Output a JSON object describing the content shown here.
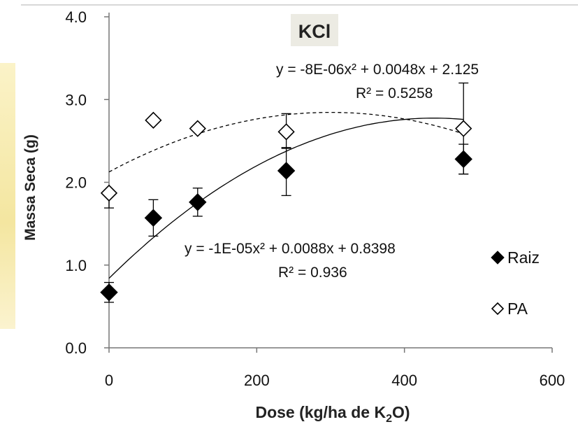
{
  "chart_data": {
    "type": "scatter",
    "title": "KCl",
    "xlabel_main": "Dose (kg/ha de K",
    "xlabel_sub": "2",
    "xlabel_end": "O)",
    "ylabel": "Massa Seca (g)",
    "xlim": [
      0,
      600
    ],
    "ylim": [
      0,
      4
    ],
    "x_ticks": [
      0,
      200,
      400,
      600
    ],
    "x_tick_labels": [
      "0",
      "200",
      "400",
      "600"
    ],
    "y_ticks": [
      0,
      1,
      2,
      3,
      4
    ],
    "y_tick_labels": [
      "0.0",
      "1.0",
      "2.0",
      "3.0",
      "4.0"
    ],
    "grid": false,
    "legend_position": "right",
    "series": [
      {
        "name": "Raiz",
        "marker": "filled-diamond",
        "color": "#000000",
        "x": [
          0,
          60,
          120,
          240,
          480
        ],
        "y": [
          0.67,
          1.57,
          1.76,
          2.14,
          2.28
        ],
        "err_low": [
          0.12,
          0.22,
          0.17,
          0.3,
          0.18
        ],
        "err_high": [
          0.12,
          0.22,
          0.17,
          0.28,
          0.18
        ],
        "trend": {
          "a": -1e-05,
          "b": 0.0088,
          "c": 0.8398,
          "style": "solid"
        },
        "equation": "y = -1E-05x² + 0.0088x + 0.8398",
        "r2": "R² = 0.936"
      },
      {
        "name": "PA",
        "marker": "open-diamond",
        "color": "#000000",
        "x": [
          0,
          60,
          120,
          240,
          480
        ],
        "y": [
          1.87,
          2.75,
          2.65,
          2.61,
          2.65
        ],
        "err_low": [
          0.18,
          0.0,
          0.0,
          0.2,
          0.55
        ],
        "err_high": [
          0.0,
          0.0,
          0.0,
          0.22,
          0.55
        ],
        "trend": {
          "a": -8e-06,
          "b": 0.0048,
          "c": 2.125,
          "style": "dashed"
        },
        "equation": "y = -8E-06x² + 0.0048x + 2.125",
        "r2": "R² = 0.5258"
      }
    ]
  }
}
